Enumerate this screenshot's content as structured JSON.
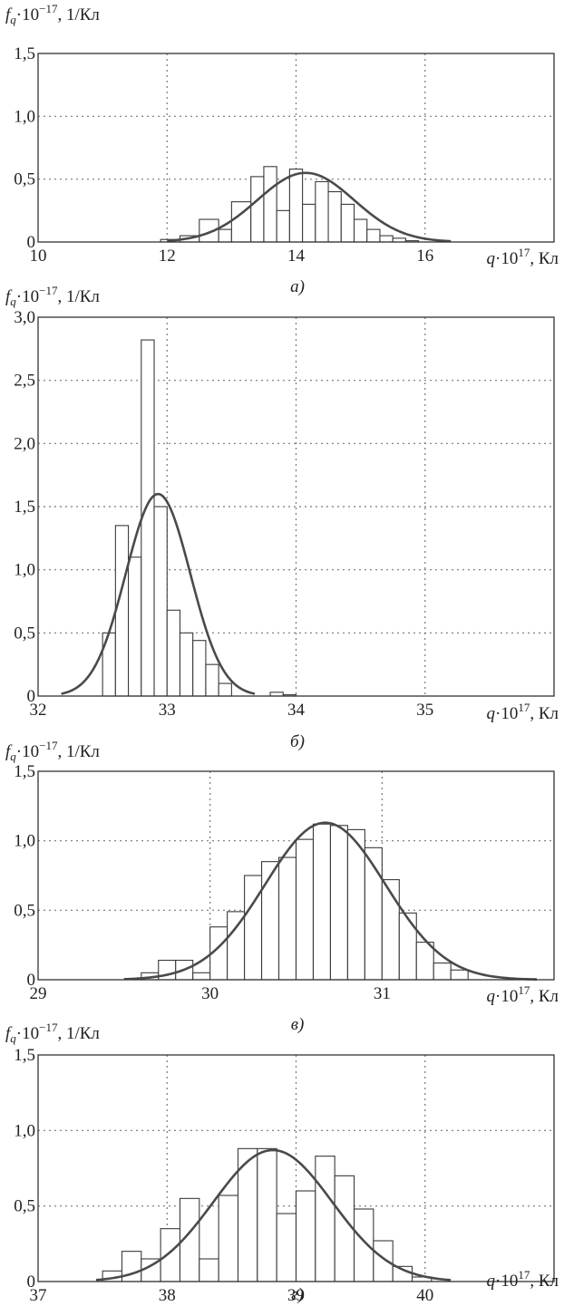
{
  "chart_data": [
    {
      "type": "bar",
      "panel_label": "а)",
      "ylabel_main": "f",
      "ylabel_sub": "q",
      "ylabel_tail": "·10",
      "ylabel_exp": "−17",
      "ylabel_unit": ", 1/Кл",
      "xlabel_main": "q",
      "xlabel_tail": "·10",
      "xlabel_exp": "17",
      "xlabel_unit": ", Кл",
      "xlim": [
        10,
        18
      ],
      "ylim": [
        0,
        1.5
      ],
      "xticks": [
        10,
        12,
        14,
        16
      ],
      "xtick_labels": [
        "10",
        "12",
        "14",
        "16"
      ],
      "yticks": [
        0,
        0.5,
        1.0,
        1.5
      ],
      "ytick_labels": [
        "0",
        "0,5",
        "1,0",
        "1,5"
      ],
      "grid": true,
      "bin_edges": [
        11.9,
        12.2,
        12.5,
        12.8,
        13.0,
        13.3,
        13.5,
        13.7,
        13.9,
        14.1,
        14.3,
        14.5,
        14.7,
        14.9,
        15.1,
        15.3,
        15.5,
        15.7,
        15.9
      ],
      "values": [
        0.02,
        0.05,
        0.18,
        0.1,
        0.32,
        0.52,
        0.6,
        0.25,
        0.58,
        0.3,
        0.48,
        0.4,
        0.3,
        0.18,
        0.1,
        0.05,
        0.03,
        0.01
      ],
      "curve": {
        "mean": 14.15,
        "std": 0.75,
        "peak": 0.55,
        "from": 12.0,
        "to": 16.4
      }
    },
    {
      "type": "bar",
      "panel_label": "б)",
      "ylabel_main": "f",
      "ylabel_sub": "q",
      "ylabel_tail": "·10",
      "ylabel_exp": "−17",
      "ylabel_unit": ", 1/Кл",
      "xlabel_main": "q",
      "xlabel_tail": "·10",
      "xlabel_exp": "17",
      "xlabel_unit": ", Кл",
      "xlim": [
        32,
        36
      ],
      "ylim": [
        0,
        3.0
      ],
      "xticks": [
        32,
        33,
        34,
        35
      ],
      "xtick_labels": [
        "32",
        "33",
        "34",
        "35"
      ],
      "yticks": [
        0,
        0.5,
        1.0,
        1.5,
        2.0,
        2.5,
        3.0
      ],
      "ytick_labels": [
        "0",
        "0,5",
        "1,0",
        "1,5",
        "2,0",
        "2,5",
        "3,0"
      ],
      "grid": true,
      "bin_edges": [
        32.5,
        32.6,
        32.7,
        32.8,
        32.9,
        33.0,
        33.1,
        33.2,
        33.3,
        33.4,
        33.5,
        33.6,
        33.7,
        33.8,
        33.9,
        34.0
      ],
      "values": [
        0.5,
        1.35,
        1.1,
        2.82,
        1.5,
        0.68,
        0.5,
        0.44,
        0.25,
        0.1,
        0.0,
        0.0,
        0.0,
        0.03,
        0.01
      ],
      "curve": {
        "mean": 32.93,
        "std": 0.25,
        "peak": 1.6,
        "from": 32.18,
        "to": 33.68
      }
    },
    {
      "type": "bar",
      "panel_label": "в)",
      "ylabel_main": "f",
      "ylabel_sub": "q",
      "ylabel_tail": "·10",
      "ylabel_exp": "−17",
      "ylabel_unit": ", 1/Кл",
      "xlabel_main": "q",
      "xlabel_tail": "·10",
      "xlabel_exp": "17",
      "xlabel_unit": ", Кл",
      "xlim": [
        29,
        32
      ],
      "ylim": [
        0,
        1.5
      ],
      "xticks": [
        29,
        30,
        31
      ],
      "xtick_labels": [
        "29",
        "30",
        "31"
      ],
      "yticks": [
        0,
        0.5,
        1.0,
        1.5
      ],
      "ytick_labels": [
        "0",
        "0,5",
        "1,0",
        "1,5"
      ],
      "grid": true,
      "bin_edges": [
        29.6,
        29.7,
        29.8,
        29.9,
        30.0,
        30.1,
        30.2,
        30.3,
        30.4,
        30.5,
        30.6,
        30.7,
        30.8,
        30.9,
        31.0,
        31.1,
        31.2,
        31.3,
        31.4,
        31.5
      ],
      "values": [
        0.05,
        0.14,
        0.14,
        0.05,
        0.38,
        0.49,
        0.75,
        0.85,
        0.88,
        1.01,
        1.12,
        1.11,
        1.08,
        0.95,
        0.72,
        0.48,
        0.27,
        0.12,
        0.07
      ],
      "curve": {
        "mean": 30.67,
        "std": 0.35,
        "peak": 1.13,
        "from": 29.5,
        "to": 31.9
      }
    },
    {
      "type": "bar",
      "panel_label": "г)",
      "ylabel_main": "f",
      "ylabel_sub": "q",
      "ylabel_tail": "·10",
      "ylabel_exp": "−17",
      "ylabel_unit": ", 1/Кл",
      "xlabel_main": "q",
      "xlabel_tail": "·10",
      "xlabel_exp": "17",
      "xlabel_unit": ", Кл",
      "xlim": [
        37,
        41
      ],
      "ylim": [
        0,
        1.5
      ],
      "xticks": [
        37,
        38,
        39,
        40
      ],
      "xtick_labels": [
        "37",
        "38",
        "39",
        "40"
      ],
      "yticks": [
        0,
        0.5,
        1.0,
        1.5
      ],
      "ytick_labels": [
        "0",
        "0,5",
        "1,0",
        "1,5"
      ],
      "grid": true,
      "bin_edges": [
        37.5,
        37.65,
        37.8,
        37.95,
        38.1,
        38.25,
        38.4,
        38.55,
        38.7,
        38.85,
        39.0,
        39.15,
        39.3,
        39.45,
        39.6,
        39.75,
        39.9,
        40.05
      ],
      "values": [
        0.07,
        0.2,
        0.15,
        0.35,
        0.55,
        0.15,
        0.57,
        0.88,
        0.88,
        0.45,
        0.6,
        0.83,
        0.7,
        0.48,
        0.27,
        0.1,
        0.03
      ],
      "curve": {
        "mean": 38.82,
        "std": 0.46,
        "peak": 0.87,
        "from": 37.45,
        "to": 40.2
      }
    }
  ]
}
